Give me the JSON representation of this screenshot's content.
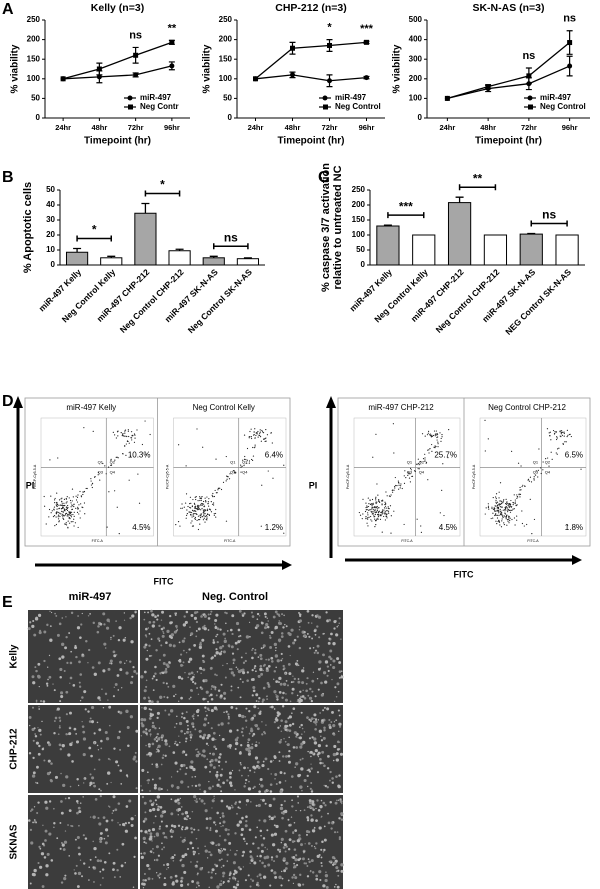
{
  "panel_labels": [
    "A",
    "B",
    "C",
    "D",
    "E"
  ],
  "chart_data": [
    {
      "type": "line",
      "title": "Kelly (n=3)",
      "ylabel": "% viability",
      "xlabel": "Timepoint (hr)",
      "categories": [
        "24hr",
        "48hr",
        "72hr",
        "96hr"
      ],
      "series": [
        {
          "name": "miR-497",
          "marker": "circle",
          "color": "#000000",
          "values": [
            100,
            105,
            110,
            133
          ],
          "errors": [
            0,
            15,
            5,
            10
          ]
        },
        {
          "name": "Neg Contr",
          "marker": "square",
          "color": "#000000",
          "values": [
            100,
            125,
            160,
            193
          ],
          "errors": [
            0,
            15,
            20,
            5
          ]
        }
      ],
      "annotations": [
        null,
        null,
        "ns",
        "**"
      ],
      "ylim": [
        0,
        250
      ],
      "yticks": [
        0,
        50,
        100,
        150,
        200,
        250
      ]
    },
    {
      "type": "line",
      "title": "CHP-212 (n=3)",
      "ylabel": "% viability",
      "xlabel": "Timepoint (hr)",
      "categories": [
        "24hr",
        "48hr",
        "72hr",
        "96hr"
      ],
      "series": [
        {
          "name": "miR-497",
          "marker": "circle",
          "color": "#000000",
          "values": [
            100,
            110,
            95,
            103
          ],
          "errors": [
            0,
            7,
            15,
            3
          ]
        },
        {
          "name": "Neg Control",
          "marker": "square",
          "color": "#000000",
          "values": [
            100,
            178,
            185,
            193
          ],
          "errors": [
            0,
            15,
            15,
            3
          ]
        }
      ],
      "annotations": [
        null,
        null,
        "*",
        "***"
      ],
      "ylim": [
        0,
        250
      ],
      "yticks": [
        0,
        50,
        100,
        150,
        200,
        250
      ]
    },
    {
      "type": "line",
      "title": "SK-N-AS (n=3)",
      "ylabel": "% viability",
      "xlabel": "Timepoint (hr)",
      "categories": [
        "24hr",
        "48hr",
        "72hr",
        "96hr"
      ],
      "series": [
        {
          "name": "miR-497",
          "marker": "circle",
          "color": "#000000",
          "values": [
            100,
            150,
            175,
            265
          ],
          "errors": [
            0,
            15,
            30,
            50
          ]
        },
        {
          "name": "Neg Control",
          "marker": "square",
          "color": "#000000",
          "values": [
            100,
            160,
            215,
            385
          ],
          "errors": [
            0,
            10,
            40,
            60
          ]
        }
      ],
      "annotations": [
        null,
        null,
        "ns",
        "ns"
      ],
      "ylim": [
        0,
        500
      ],
      "yticks": [
        0,
        100,
        200,
        300,
        400,
        500
      ]
    },
    {
      "type": "bar",
      "ylabel": [
        "% Apoptotic cells"
      ],
      "categories": [
        "miR-497 Kelly",
        "Neg Control Kelly",
        "miR-497 CHP-212",
        "Neg Control CHP-212",
        "miR-497 SK-N-AS",
        "Neg Control SK-N-AS"
      ],
      "values": [
        8.5,
        4.8,
        34.5,
        9.5,
        4.8,
        4.2
      ],
      "errors": [
        2.5,
        1,
        6.5,
        1,
        1,
        0.5
      ],
      "colors": [
        "#a6a6a6",
        "#ffffff",
        "#a6a6a6",
        "#ffffff",
        "#a6a6a6",
        "#ffffff"
      ],
      "comparisons": [
        "*",
        "*",
        "ns"
      ],
      "ylim": [
        0,
        50
      ],
      "yticks": [
        0,
        10,
        20,
        30,
        40,
        50
      ]
    },
    {
      "type": "bar",
      "ylabel": [
        "% caspase 3/7 activation",
        "relative to  untreated NC"
      ],
      "categories": [
        "miR-497 Kelly",
        "Neg Control Kelly",
        "miR-497 CHP-212",
        "Neg Control CHP-212",
        "miR-497 SK-N-AS",
        "NEG Control SK-N-AS"
      ],
      "values": [
        130,
        100,
        208,
        100,
        103,
        100
      ],
      "errors": [
        3,
        0,
        18,
        0,
        2,
        0
      ],
      "colors": [
        "#a6a6a6",
        "#ffffff",
        "#a6a6a6",
        "#ffffff",
        "#a6a6a6",
        "#ffffff"
      ],
      "comparisons": [
        "***",
        "**",
        "ns"
      ],
      "ylim": [
        0,
        250
      ],
      "yticks": [
        0,
        50,
        100,
        150,
        200,
        250
      ]
    }
  ],
  "flow": {
    "y_label": "PI",
    "x_label": "FITC",
    "axis_y": "PerCP-Cy5-5-A",
    "axis_x": "FITC-A",
    "quadrants": [
      "Q1",
      "Q2",
      "Q3",
      "Q4"
    ],
    "groups": [
      {
        "plots": [
          {
            "title": "miR-497 Kelly",
            "upper_right": "10.3%",
            "lower_right": "4.5%"
          },
          {
            "title": "Neg Control Kelly",
            "upper_right": "6.4%",
            "lower_right": "1.2%"
          }
        ]
      },
      {
        "plots": [
          {
            "title": "miR-497 CHP-212",
            "upper_right": "25.7%",
            "lower_right": "4.5%"
          },
          {
            "title": "Neg Control CHP-212",
            "upper_right": "6.5%",
            "lower_right": "1.8%"
          }
        ]
      }
    ]
  },
  "microscopy": {
    "columns": [
      "miR-497",
      "Neg. Control"
    ],
    "rows": [
      "Kelly",
      "CHP-212",
      "SKNAS"
    ]
  }
}
